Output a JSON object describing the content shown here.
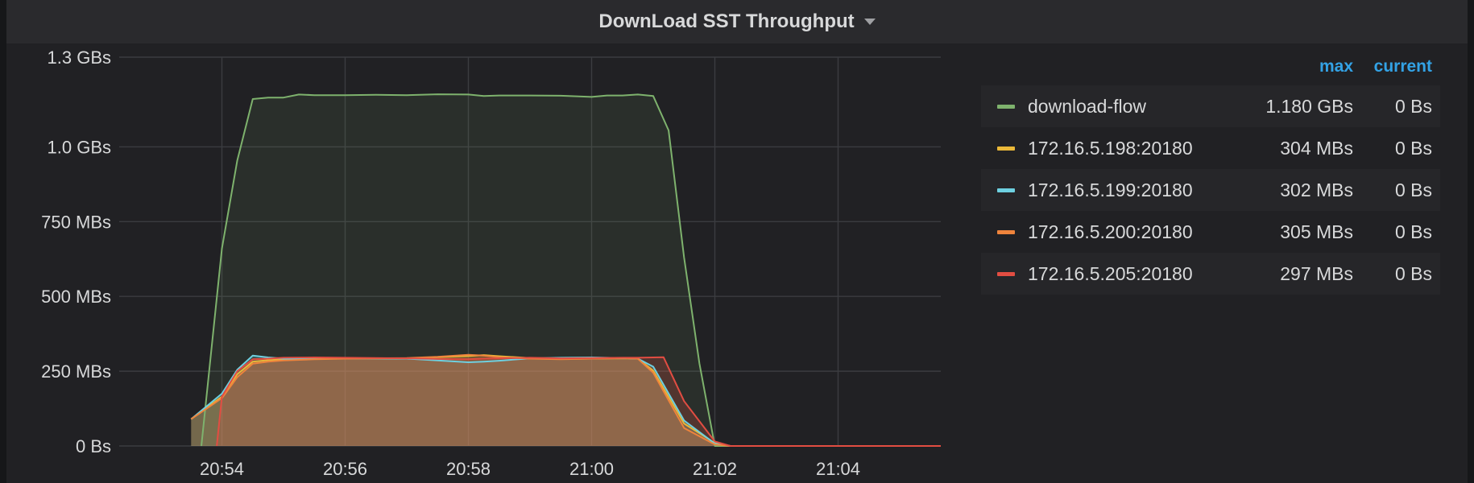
{
  "panel": {
    "title": "DownLoad SST Throughput"
  },
  "legend": {
    "columns": {
      "max": "max",
      "current": "current"
    },
    "items": [
      {
        "name": "download-flow",
        "max": "1.180 GBs",
        "current": "0 Bs",
        "color": "#7eb26d"
      },
      {
        "name": "172.16.5.198:20180",
        "max": "304 MBs",
        "current": "0 Bs",
        "color": "#eab839"
      },
      {
        "name": "172.16.5.199:20180",
        "max": "302 MBs",
        "current": "0 Bs",
        "color": "#6ed0e0"
      },
      {
        "name": "172.16.5.200:20180",
        "max": "305 MBs",
        "current": "0 Bs",
        "color": "#ef843c"
      },
      {
        "name": "172.16.5.205:20180",
        "max": "297 MBs",
        "current": "0 Bs",
        "color": "#e24d42"
      }
    ]
  },
  "chart_data": {
    "type": "area",
    "title": "DownLoad SST Throughput",
    "x_unit": "minutes (time of day)",
    "y_unit": "MBs",
    "xlim": [
      "20:52:20",
      "21:05:40"
    ],
    "ylim": [
      0,
      1300
    ],
    "yticks": [
      {
        "value": 0,
        "label": "0 Bs"
      },
      {
        "value": 250,
        "label": "250 MBs"
      },
      {
        "value": 500,
        "label": "500 MBs"
      },
      {
        "value": 750,
        "label": "750 MBs"
      },
      {
        "value": 1000,
        "label": "1.0 GBs"
      },
      {
        "value": 1300,
        "label": "1.3 GBs"
      }
    ],
    "xticks": [
      "20:54",
      "20:56",
      "20:58",
      "21:00",
      "21:02",
      "21:04"
    ],
    "grid": true,
    "legend_position": "right",
    "series": [
      {
        "name": "download-flow",
        "color": "#7eb26d",
        "x": [
          "20:53:40",
          "20:54:00",
          "20:54:15",
          "20:54:30",
          "20:54:45",
          "20:55:00",
          "20:55:15",
          "20:55:30",
          "20:56:00",
          "20:56:30",
          "20:57:00",
          "20:57:30",
          "20:58:00",
          "20:58:15",
          "20:58:30",
          "20:59:00",
          "20:59:30",
          "21:00:00",
          "21:00:15",
          "21:00:30",
          "21:00:45",
          "21:01:00",
          "21:01:15",
          "21:01:30",
          "21:01:45",
          "21:02:00",
          "21:02:15",
          "21:03:00",
          "21:04:00",
          "21:05:40"
        ],
        "y": [
          0,
          660,
          955,
          1160,
          1165,
          1165,
          1175,
          1173,
          1173,
          1174,
          1173,
          1176,
          1175,
          1170,
          1172,
          1172,
          1171,
          1167,
          1172,
          1172,
          1175,
          1170,
          1055,
          630,
          275,
          0,
          0,
          0,
          0,
          0
        ]
      },
      {
        "name": "172.16.5.198:20180",
        "color": "#eab839",
        "x": [
          "20:53:30",
          "20:54:00",
          "20:54:15",
          "20:54:30",
          "20:54:45",
          "20:55:00",
          "20:55:30",
          "20:56:00",
          "20:57:00",
          "20:57:30",
          "20:58:00",
          "20:58:15",
          "20:58:30",
          "20:59:00",
          "20:59:30",
          "21:00:00",
          "21:00:30",
          "21:00:45",
          "21:01:00",
          "21:01:30",
          "21:02:00",
          "21:02:15",
          "21:03:00",
          "21:04:00",
          "21:05:40"
        ],
        "y": [
          90,
          165,
          240,
          282,
          287,
          290,
          292,
          293,
          292,
          297,
          301,
          304,
          300,
          294,
          291,
          292,
          293,
          292,
          252,
          75,
          10,
          0,
          0,
          0,
          0
        ]
      },
      {
        "name": "172.16.5.199:20180",
        "color": "#6ed0e0",
        "x": [
          "20:53:30",
          "20:54:00",
          "20:54:15",
          "20:54:30",
          "20:54:45",
          "20:55:00",
          "20:55:30",
          "20:56:00",
          "20:57:00",
          "20:57:30",
          "20:58:00",
          "20:58:15",
          "20:58:30",
          "20:59:00",
          "20:59:30",
          "21:00:00",
          "21:00:30",
          "21:00:45",
          "21:01:00",
          "21:01:30",
          "21:02:00",
          "21:02:15",
          "21:03:00",
          "21:04:00",
          "21:05:40"
        ],
        "y": [
          90,
          175,
          255,
          302,
          296,
          292,
          291,
          293,
          292,
          286,
          280,
          282,
          285,
          293,
          295,
          296,
          294,
          292,
          265,
          85,
          8,
          0,
          0,
          0,
          0
        ]
      },
      {
        "name": "172.16.5.200:20180",
        "color": "#ef843c",
        "x": [
          "20:53:30",
          "20:54:00",
          "20:54:15",
          "20:54:30",
          "20:54:45",
          "20:55:00",
          "20:55:30",
          "20:56:00",
          "20:57:00",
          "20:57:30",
          "20:58:00",
          "20:58:15",
          "20:58:30",
          "20:59:00",
          "20:59:30",
          "21:00:00",
          "21:00:30",
          "21:00:45",
          "21:01:00",
          "21:01:30",
          "21:02:00",
          "21:02:15",
          "21:03:00",
          "21:04:00",
          "21:05:40"
        ],
        "y": [
          90,
          160,
          230,
          275,
          282,
          286,
          290,
          292,
          294,
          298,
          305,
          302,
          297,
          292,
          290,
          292,
          294,
          292,
          245,
          60,
          5,
          0,
          0,
          0,
          0
        ]
      },
      {
        "name": "172.16.5.205:20180",
        "color": "#e24d42",
        "x": [
          "20:53:55",
          "20:54:00",
          "20:54:15",
          "20:54:30",
          "20:54:45",
          "20:55:00",
          "20:55:30",
          "20:56:00",
          "20:57:00",
          "20:57:30",
          "20:58:00",
          "20:58:15",
          "20:58:30",
          "20:59:00",
          "20:59:30",
          "21:00:00",
          "21:00:30",
          "21:00:45",
          "21:01:00",
          "21:01:10",
          "21:01:30",
          "21:02:00",
          "21:02:15",
          "21:03:00",
          "21:04:00",
          "21:05:40"
        ],
        "y": [
          0,
          165,
          250,
          290,
          292,
          295,
          296,
          295,
          293,
          291,
          290,
          292,
          293,
          295,
          293,
          294,
          295,
          295,
          296,
          297,
          150,
          15,
          0,
          0,
          0,
          0
        ]
      }
    ]
  }
}
